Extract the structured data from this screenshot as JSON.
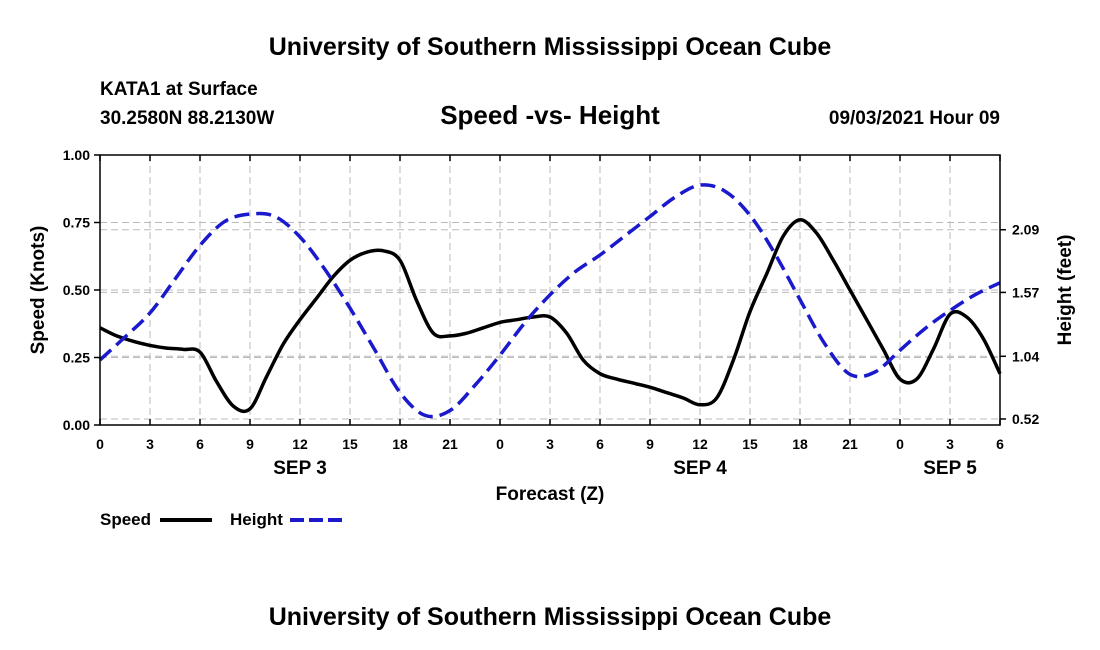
{
  "header": {
    "title": "University of Southern Mississippi Ocean Cube",
    "station": "KATA1 at Surface",
    "coords": "30.2580N  88.2130W",
    "datetime": "09/03/2021 Hour 09"
  },
  "footer": {
    "title": "University of Southern Mississippi Ocean Cube"
  },
  "legend": {
    "speed_label": "Speed",
    "height_label": "Height"
  },
  "colors": {
    "speed": "#000000",
    "height": "#1a1acc",
    "grid": "#bbbbbb"
  },
  "chart_data": {
    "type": "line",
    "title": "Speed -vs- Height",
    "xlabel": "Forecast (Z)",
    "ylabel": "Speed (Knots)",
    "y2label": "Height (feet)",
    "x_unit": "hours since SEP 3 00Z",
    "xlim": [
      0,
      54
    ],
    "ylim": [
      0,
      1
    ],
    "y2lim": [
      0.47,
      2.71
    ],
    "x_ticks": [
      0,
      3,
      6,
      9,
      12,
      15,
      18,
      21,
      24,
      27,
      30,
      33,
      36,
      39,
      42,
      45,
      48,
      51,
      54
    ],
    "x_tick_labels": [
      "0",
      "3",
      "6",
      "9",
      "12",
      "15",
      "18",
      "21",
      "0",
      "3",
      "6",
      "9",
      "12",
      "15",
      "18",
      "21",
      "0",
      "3",
      "6"
    ],
    "date_labels": [
      {
        "x": 12,
        "label": "SEP 3"
      },
      {
        "x": 36,
        "label": "SEP 4"
      },
      {
        "x": 51,
        "label": "SEP 5"
      }
    ],
    "y_ticks": [
      0,
      0.25,
      0.5,
      0.75,
      1.0
    ],
    "y_tick_labels": [
      "0.00",
      "0.25",
      "0.50",
      "0.75",
      "1.00"
    ],
    "y2_ticks": [
      0.52,
      1.04,
      1.57,
      2.09
    ],
    "y2_tick_labels": [
      "0.52",
      "1.04",
      "1.57",
      "2.09"
    ],
    "series": [
      {
        "name": "Speed",
        "axis": "left",
        "style": "solid",
        "x": [
          0,
          1,
          2,
          3,
          4,
          5,
          6,
          7,
          8,
          9,
          10,
          11,
          12,
          13,
          14,
          15,
          16,
          17,
          18,
          19,
          20,
          21,
          22,
          23,
          24,
          25,
          26,
          27,
          28,
          29,
          30,
          31,
          32,
          33,
          34,
          35,
          36,
          37,
          38,
          39,
          40,
          41,
          42,
          43,
          44,
          45,
          46,
          47,
          48,
          49,
          50,
          51,
          52,
          53,
          54
        ],
        "values": [
          0.36,
          0.33,
          0.31,
          0.295,
          0.285,
          0.28,
          0.27,
          0.16,
          0.07,
          0.06,
          0.18,
          0.3,
          0.39,
          0.47,
          0.55,
          0.61,
          0.64,
          0.645,
          0.61,
          0.46,
          0.34,
          0.33,
          0.34,
          0.36,
          0.38,
          0.39,
          0.4,
          0.4,
          0.34,
          0.24,
          0.19,
          0.17,
          0.155,
          0.14,
          0.12,
          0.1,
          0.075,
          0.1,
          0.24,
          0.42,
          0.56,
          0.7,
          0.76,
          0.71,
          0.61,
          0.5,
          0.39,
          0.28,
          0.17,
          0.17,
          0.28,
          0.41,
          0.4,
          0.32,
          0.19
        ]
      },
      {
        "name": "Height",
        "axis": "right",
        "style": "dashed",
        "x": [
          0,
          1.5,
          3,
          4.5,
          6,
          7.5,
          9,
          10.5,
          12,
          13.5,
          15,
          16.5,
          18,
          19.5,
          21,
          22.5,
          24,
          25.5,
          27,
          28.5,
          30,
          31.5,
          33,
          34.5,
          36,
          37.5,
          39,
          40.5,
          42,
          43.5,
          45,
          46.5,
          48,
          49.5,
          51,
          52.5,
          54
        ],
        "values": [
          1.01,
          1.2,
          1.4,
          1.68,
          1.96,
          2.16,
          2.22,
          2.2,
          2.03,
          1.76,
          1.44,
          1.09,
          0.74,
          0.55,
          0.59,
          0.8,
          1.05,
          1.32,
          1.55,
          1.74,
          1.88,
          2.04,
          2.2,
          2.36,
          2.46,
          2.41,
          2.21,
          1.89,
          1.51,
          1.14,
          0.89,
          0.91,
          1.09,
          1.27,
          1.42,
          1.55,
          1.65
        ]
      }
    ]
  }
}
